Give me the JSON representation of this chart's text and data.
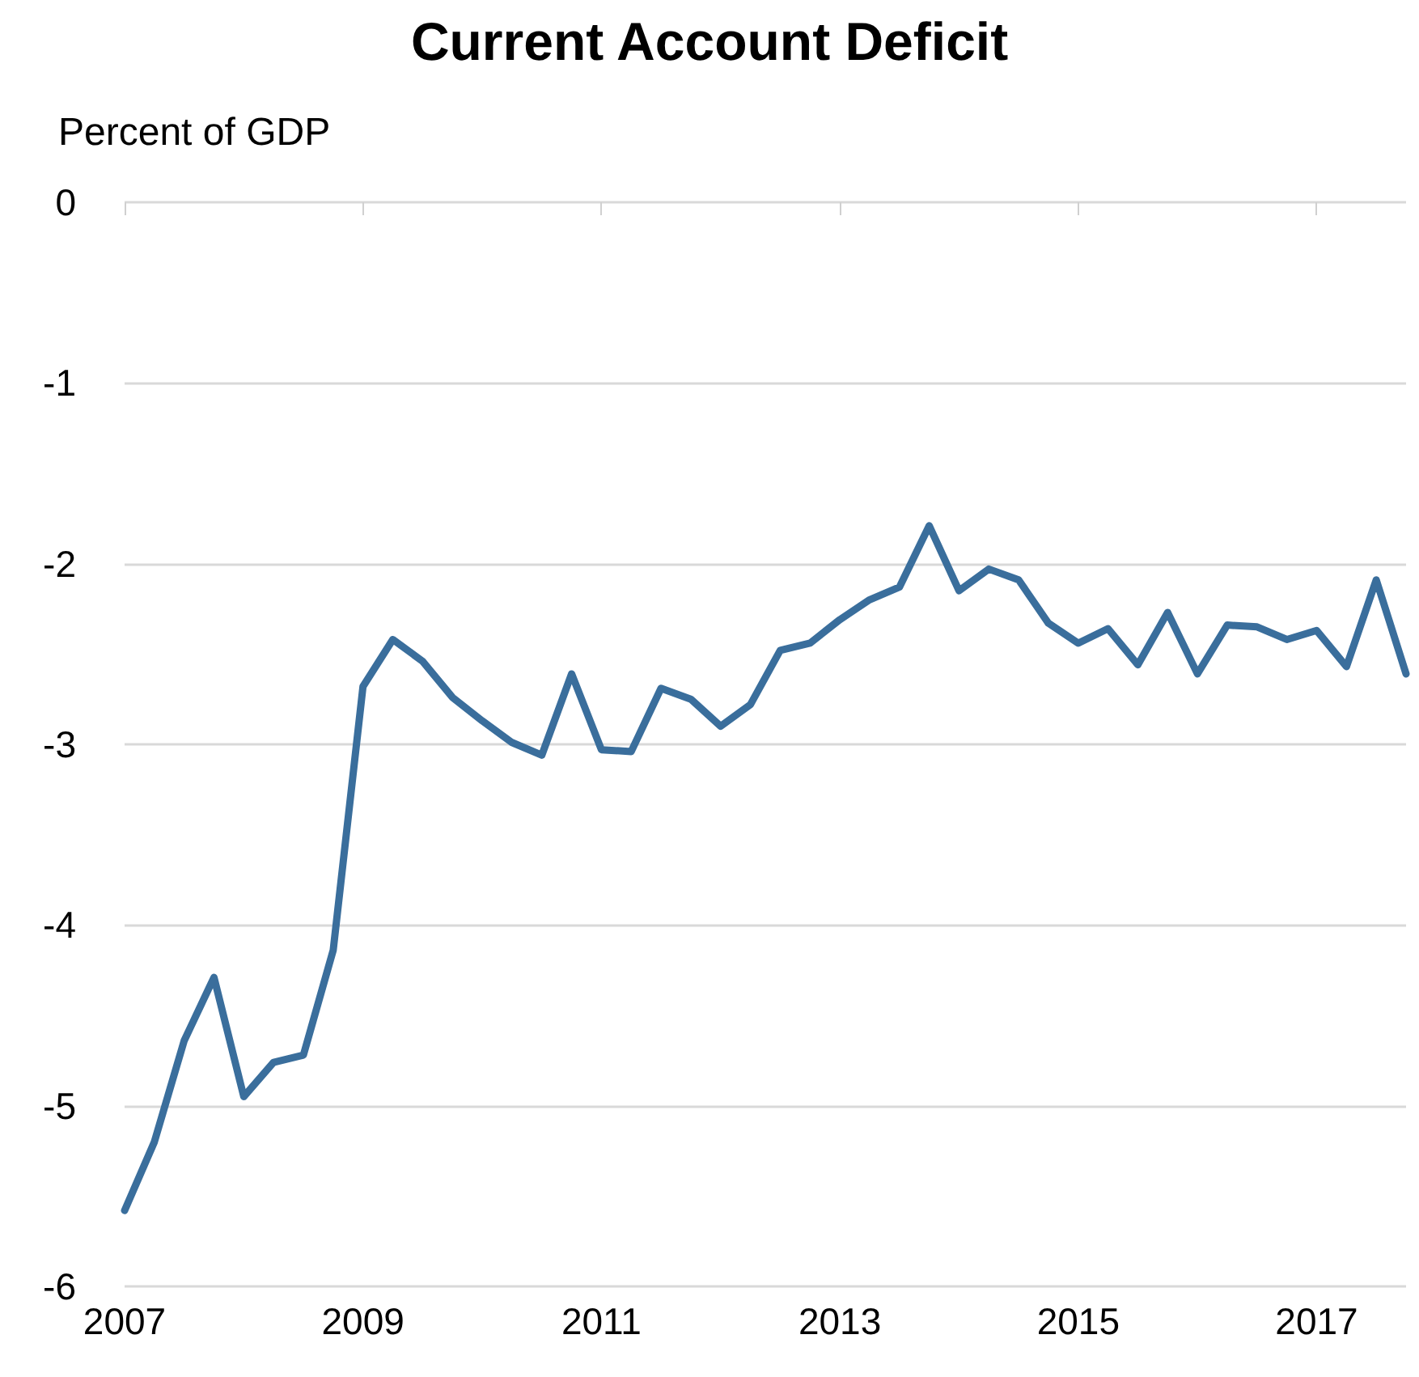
{
  "chart_data": {
    "type": "line",
    "title": "Current Account Deficit",
    "ylabel": "Percent of GDP",
    "x": [
      2007,
      2007.25,
      2007.5,
      2007.75,
      2008,
      2008.25,
      2008.5,
      2008.75,
      2009,
      2009.25,
      2009.5,
      2009.75,
      2010,
      2010.25,
      2010.5,
      2010.75,
      2011,
      2011.25,
      2011.5,
      2011.75,
      2012,
      2012.25,
      2012.5,
      2012.75,
      2013,
      2013.25,
      2013.5,
      2013.75,
      2014,
      2014.25,
      2014.5,
      2014.75,
      2015,
      2015.25,
      2015.5,
      2015.75,
      2016,
      2016.25,
      2016.5,
      2016.75,
      2017,
      2017.25,
      2017.5,
      2017.75
    ],
    "series": [
      {
        "color": "#3a6e9c",
        "values": [
          -5.58,
          -5.2,
          -4.64,
          -4.29,
          -4.95,
          -4.76,
          -4.72,
          -4.14,
          -2.68,
          -2.42,
          -2.54,
          -2.74,
          -2.87,
          -2.99,
          -3.06,
          -2.61,
          -3.03,
          -3.04,
          -2.69,
          -2.75,
          -2.9,
          -2.78,
          -2.48,
          -2.44,
          -2.31,
          -2.2,
          -2.13,
          -1.79,
          -2.15,
          -2.03,
          -2.09,
          -2.33,
          -2.44,
          -2.36,
          -2.56,
          -2.27,
          -2.61,
          -2.34,
          -2.35,
          -2.42,
          -2.37,
          -2.57,
          -2.09,
          -2.61
        ]
      }
    ],
    "xlim": [
      2007,
      2017.75
    ],
    "xticks": [
      2007,
      2009,
      2011,
      2013,
      2015,
      2017
    ],
    "ylim": [
      -6,
      0
    ],
    "yticks": [
      -6,
      -5,
      -4,
      -3,
      -2,
      -1,
      0
    ],
    "grid": "y",
    "marker": "none",
    "line_style": "solid"
  }
}
